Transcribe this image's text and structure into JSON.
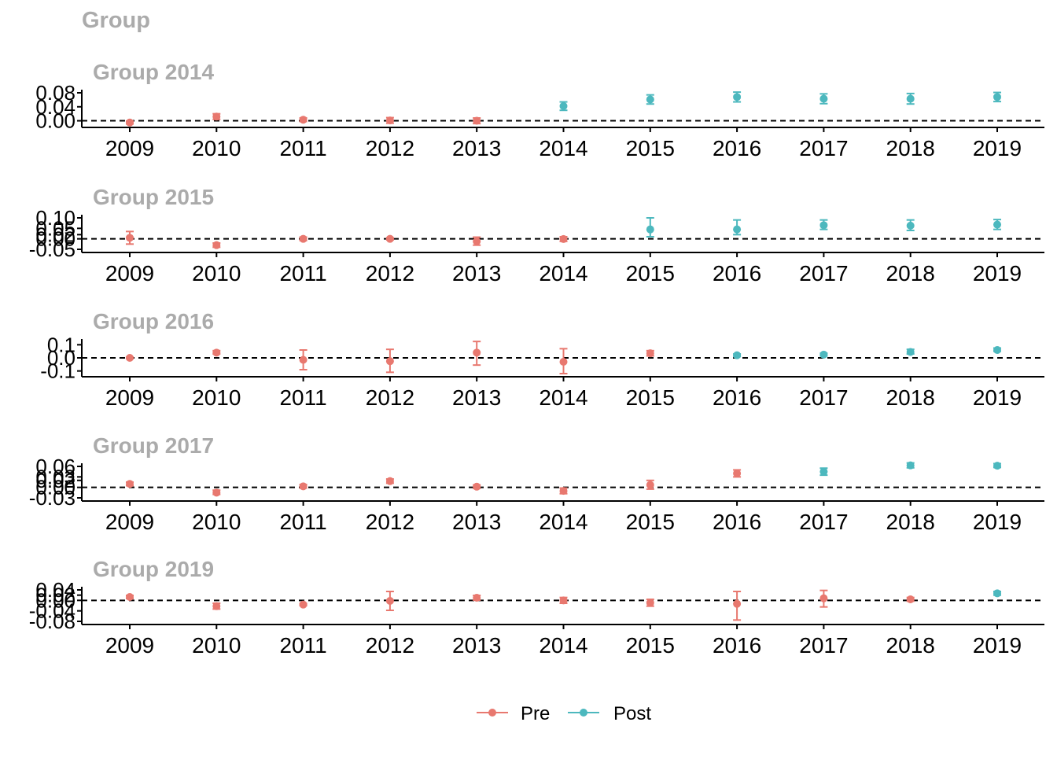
{
  "title": "Group",
  "colors": {
    "pre": "#E8786F",
    "post": "#4CB8BE",
    "panel_title": "#ABABAB",
    "axis": "#000000"
  },
  "legend": {
    "position": "bottom",
    "items": [
      {
        "label": "Pre",
        "color_key": "pre"
      },
      {
        "label": "Post",
        "color_key": "post"
      }
    ]
  },
  "chart_data": [
    {
      "type": "scatter",
      "title": "Group 2014",
      "ylim": [
        -0.01,
        0.08
      ],
      "yticks": [
        0.0,
        0.04,
        0.08
      ],
      "ytick_labels": [
        "0.00",
        "0.04",
        "0.08"
      ],
      "reference_line": 0,
      "x": [
        "2009",
        "2010",
        "2011",
        "2012",
        "2013",
        "2014",
        "2015",
        "2016",
        "2017",
        "2018",
        "2019"
      ],
      "series": [
        {
          "name": "Pre",
          "color_key": "pre",
          "points": [
            {
              "x": "2009",
              "y": -0.005,
              "lo": -0.009,
              "hi": -0.001
            },
            {
              "x": "2010",
              "y": 0.012,
              "lo": 0.004,
              "hi": 0.02
            },
            {
              "x": "2011",
              "y": 0.003,
              "lo": -0.002,
              "hi": 0.008
            },
            {
              "x": "2012",
              "y": 0.001,
              "lo": -0.007,
              "hi": 0.009
            },
            {
              "x": "2013",
              "y": 0.0,
              "lo": -0.008,
              "hi": 0.008
            }
          ]
        },
        {
          "name": "Post",
          "color_key": "post",
          "points": [
            {
              "x": "2014",
              "y": 0.042,
              "lo": 0.03,
              "hi": 0.054
            },
            {
              "x": "2015",
              "y": 0.061,
              "lo": 0.048,
              "hi": 0.074
            },
            {
              "x": "2016",
              "y": 0.068,
              "lo": 0.054,
              "hi": 0.082
            },
            {
              "x": "2017",
              "y": 0.063,
              "lo": 0.049,
              "hi": 0.077
            },
            {
              "x": "2018",
              "y": 0.063,
              "lo": 0.048,
              "hi": 0.078
            },
            {
              "x": "2019",
              "y": 0.068,
              "lo": 0.055,
              "hi": 0.081
            }
          ]
        }
      ]
    },
    {
      "type": "scatter",
      "title": "Group 2015",
      "ylim": [
        -0.05,
        0.1
      ],
      "yticks": [
        -0.05,
        0.0,
        0.02,
        0.05,
        0.1
      ],
      "ytick_labels": [
        "-0.05",
        "0.00",
        "0.02",
        "0.05",
        "0.10"
      ],
      "reference_line": 0,
      "x": [
        "2009",
        "2010",
        "2011",
        "2012",
        "2013",
        "2014",
        "2015",
        "2016",
        "2017",
        "2018",
        "2019"
      ],
      "series": [
        {
          "name": "Pre",
          "color_key": "pre",
          "points": [
            {
              "x": "2009",
              "y": 0.005,
              "lo": -0.025,
              "hi": 0.035
            },
            {
              "x": "2010",
              "y": -0.03,
              "lo": -0.04,
              "hi": -0.02
            },
            {
              "x": "2011",
              "y": 0.0,
              "lo": -0.008,
              "hi": 0.008
            },
            {
              "x": "2012",
              "y": 0.0,
              "lo": -0.005,
              "hi": 0.005
            },
            {
              "x": "2013",
              "y": -0.012,
              "lo": -0.03,
              "hi": 0.008
            },
            {
              "x": "2014",
              "y": -0.001,
              "lo": -0.012,
              "hi": 0.01
            },
            {
              "x": "2015",
              "y": 0.045,
              "lo": 0.01,
              "hi": 0.1
            },
            {
              "x": "2016",
              "y": 0.045,
              "lo": 0.02,
              "hi": 0.09
            },
            {
              "x": "2017",
              "y": 0.065,
              "lo": 0.045,
              "hi": 0.09
            },
            {
              "x": "2018",
              "y": 0.063,
              "lo": 0.04,
              "hi": 0.09
            },
            {
              "x": "2019",
              "y": 0.068,
              "lo": 0.045,
              "hi": 0.092
            }
          ]
        }
      ],
      "post_from": "2015"
    },
    {
      "type": "scatter",
      "title": "Group 2016",
      "ylim": [
        -0.12,
        0.12
      ],
      "yticks": [
        -0.1,
        0.0,
        0.1
      ],
      "ytick_labels": [
        "-0.1",
        "0.0",
        "0.1"
      ],
      "reference_line": 0,
      "x": [
        "2009",
        "2010",
        "2011",
        "2012",
        "2013",
        "2014",
        "2015",
        "2016",
        "2017",
        "2018",
        "2019"
      ],
      "series": [
        {
          "name": "Pre",
          "color_key": "pre",
          "points": [
            {
              "x": "2009",
              "y": 0.0,
              "lo": -0.005,
              "hi": 0.005
            },
            {
              "x": "2010",
              "y": 0.04,
              "lo": 0.03,
              "hi": 0.055
            },
            {
              "x": "2011",
              "y": -0.015,
              "lo": -0.09,
              "hi": 0.06
            },
            {
              "x": "2012",
              "y": -0.025,
              "lo": -0.11,
              "hi": 0.065
            },
            {
              "x": "2013",
              "y": 0.04,
              "lo": -0.055,
              "hi": 0.125
            },
            {
              "x": "2014",
              "y": -0.03,
              "lo": -0.12,
              "hi": 0.07
            },
            {
              "x": "2015",
              "y": 0.035,
              "lo": 0.015,
              "hi": 0.055
            }
          ]
        },
        {
          "name": "Post",
          "color_key": "post",
          "points": [
            {
              "x": "2016",
              "y": 0.02,
              "lo": 0.01,
              "hi": 0.03
            },
            {
              "x": "2017",
              "y": 0.025,
              "lo": 0.015,
              "hi": 0.035
            },
            {
              "x": "2018",
              "y": 0.045,
              "lo": 0.03,
              "hi": 0.065
            },
            {
              "x": "2019",
              "y": 0.06,
              "lo": 0.05,
              "hi": 0.075
            }
          ]
        }
      ]
    },
    {
      "type": "scatter",
      "title": "Group 2017",
      "ylim": [
        -0.03,
        0.06
      ],
      "yticks": [
        -0.03,
        0.0,
        0.02,
        0.03,
        0.06
      ],
      "ytick_labels": [
        "-0.03",
        "0.00",
        "0.02",
        "0.03",
        "0.06"
      ],
      "reference_line": 0,
      "x": [
        "2009",
        "2010",
        "2011",
        "2012",
        "2013",
        "2014",
        "2015",
        "2016",
        "2017",
        "2018",
        "2019"
      ],
      "series": [
        {
          "name": "Pre",
          "color_key": "pre",
          "points": [
            {
              "x": "2009",
              "y": 0.01,
              "lo": 0.005,
              "hi": 0.015
            },
            {
              "x": "2010",
              "y": -0.015,
              "lo": -0.02,
              "hi": -0.008
            },
            {
              "x": "2011",
              "y": 0.003,
              "lo": -0.002,
              "hi": 0.008
            },
            {
              "x": "2012",
              "y": 0.018,
              "lo": 0.012,
              "hi": 0.024
            },
            {
              "x": "2013",
              "y": 0.002,
              "lo": -0.003,
              "hi": 0.007
            },
            {
              "x": "2014",
              "y": -0.01,
              "lo": -0.018,
              "hi": -0.002
            },
            {
              "x": "2015",
              "y": 0.007,
              "lo": -0.005,
              "hi": 0.02
            },
            {
              "x": "2016",
              "y": 0.04,
              "lo": 0.03,
              "hi": 0.05
            }
          ]
        },
        {
          "name": "Post",
          "color_key": "post",
          "points": [
            {
              "x": "2017",
              "y": 0.045,
              "lo": 0.035,
              "hi": 0.055
            },
            {
              "x": "2018",
              "y": 0.063,
              "lo": 0.056,
              "hi": 0.07
            },
            {
              "x": "2019",
              "y": 0.062,
              "lo": 0.057,
              "hi": 0.068
            }
          ]
        }
      ]
    },
    {
      "type": "scatter",
      "title": "Group 2019",
      "ylim": [
        -0.08,
        0.04
      ],
      "yticks": [
        -0.08,
        -0.04,
        0.0,
        0.02,
        0.04
      ],
      "ytick_labels": [
        "-0.08",
        "-0.04",
        "0.00",
        "0.02",
        "0.04"
      ],
      "reference_line": 0,
      "x": [
        "2009",
        "2010",
        "2011",
        "2012",
        "2013",
        "2014",
        "2015",
        "2016",
        "2017",
        "2018",
        "2019"
      ],
      "series": [
        {
          "name": "Pre",
          "color_key": "pre",
          "points": [
            {
              "x": "2009",
              "y": 0.013,
              "lo": 0.007,
              "hi": 0.019
            },
            {
              "x": "2010",
              "y": -0.022,
              "lo": -0.033,
              "hi": -0.011
            },
            {
              "x": "2011",
              "y": -0.016,
              "lo": -0.02,
              "hi": -0.012
            },
            {
              "x": "2012",
              "y": -0.002,
              "lo": -0.038,
              "hi": 0.034
            },
            {
              "x": "2013",
              "y": 0.01,
              "lo": 0.001,
              "hi": 0.019
            },
            {
              "x": "2014",
              "y": 0.0,
              "lo": -0.011,
              "hi": 0.011
            },
            {
              "x": "2015",
              "y": -0.009,
              "lo": -0.022,
              "hi": 0.004
            },
            {
              "x": "2016",
              "y": -0.013,
              "lo": -0.075,
              "hi": 0.034
            },
            {
              "x": "2017",
              "y": 0.008,
              "lo": -0.025,
              "hi": 0.038
            },
            {
              "x": "2018",
              "y": 0.004,
              "lo": -0.003,
              "hi": 0.011
            }
          ]
        },
        {
          "name": "Post",
          "color_key": "post",
          "points": [
            {
              "x": "2019",
              "y": 0.027,
              "lo": 0.02,
              "hi": 0.034
            }
          ]
        }
      ]
    }
  ]
}
